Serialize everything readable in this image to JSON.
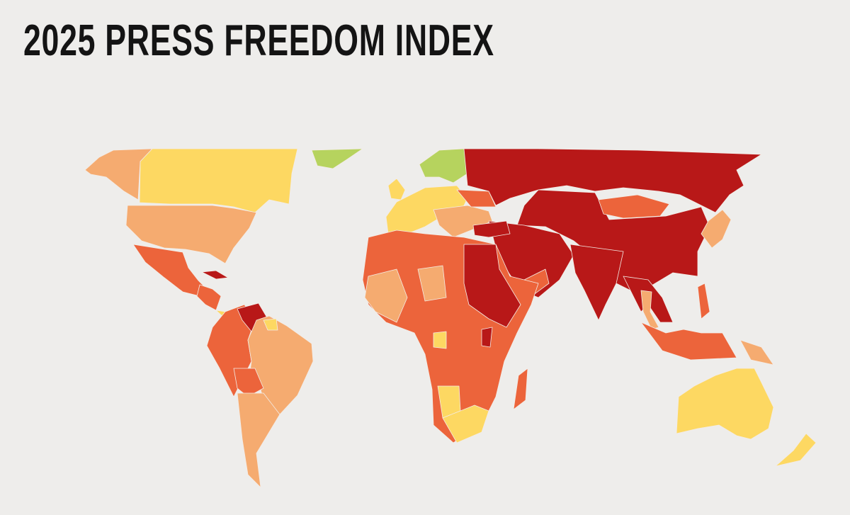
{
  "title": "2025 PRESS FREEDOM INDEX",
  "color_scale": {
    "good": "#b6d35e",
    "satisfactory": "#fdd862",
    "problematic": "#f5ab70",
    "difficult": "#ec643b",
    "very_serious": "#b81818"
  },
  "background": "#eeedeb"
}
